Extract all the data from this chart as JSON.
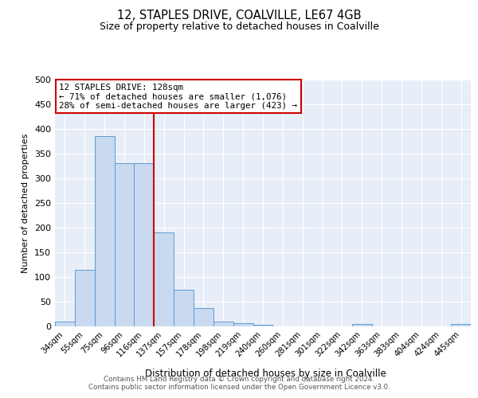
{
  "title1": "12, STAPLES DRIVE, COALVILLE, LE67 4GB",
  "title2": "Size of property relative to detached houses in Coalville",
  "xlabel": "Distribution of detached houses by size in Coalville",
  "ylabel": "Number of detached properties",
  "categories": [
    "34sqm",
    "55sqm",
    "75sqm",
    "96sqm",
    "116sqm",
    "137sqm",
    "157sqm",
    "178sqm",
    "198sqm",
    "219sqm",
    "240sqm",
    "260sqm",
    "281sqm",
    "301sqm",
    "322sqm",
    "342sqm",
    "363sqm",
    "383sqm",
    "404sqm",
    "424sqm",
    "445sqm"
  ],
  "values": [
    10,
    115,
    385,
    330,
    330,
    190,
    75,
    37,
    10,
    7,
    4,
    0,
    0,
    0,
    0,
    5,
    0,
    0,
    0,
    0,
    5
  ],
  "bar_color": "#c9d9f0",
  "bar_edge_color": "#5b9bd5",
  "annotation_line1": "12 STAPLES DRIVE: 128sqm",
  "annotation_line2": "← 71% of detached houses are smaller (1,076)",
  "annotation_line3": "28% of semi-detached houses are larger (423) →",
  "annotation_box_color": "#ffffff",
  "annotation_box_edge_color": "#cc0000",
  "red_line_color": "#cc0000",
  "ylim": [
    0,
    500
  ],
  "yticks": [
    0,
    50,
    100,
    150,
    200,
    250,
    300,
    350,
    400,
    450,
    500
  ],
  "footer1": "Contains HM Land Registry data © Crown copyright and database right 2024.",
  "footer2": "Contains public sector information licensed under the Open Government Licence v3.0.",
  "plot_bg_color": "#e8eef8"
}
